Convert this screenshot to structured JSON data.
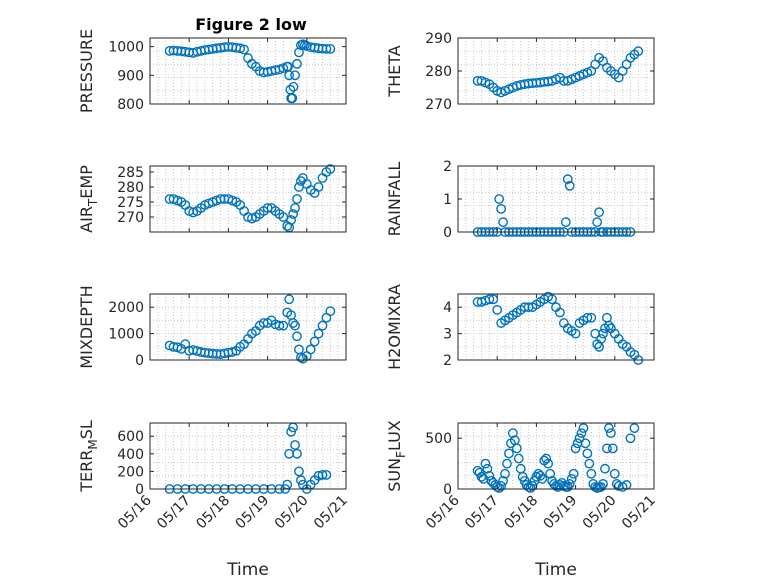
{
  "figure": {
    "title": "Figure 2 low"
  },
  "chart_data": [
    {
      "type": "scatter",
      "panel": "pressure",
      "title": "Figure 2 low",
      "ylabel": "PRESSURE",
      "xlabel": "",
      "xlim": [
        0,
        5
      ],
      "ylim": [
        800,
        1030
      ],
      "yticks": [
        800,
        900,
        1000
      ],
      "yticklabels": [
        "800",
        "900",
        "1000"
      ],
      "x": [
        0.5,
        0.6,
        0.7,
        0.8,
        0.9,
        1.0,
        1.1,
        1.2,
        1.3,
        1.4,
        1.5,
        1.6,
        1.7,
        1.8,
        1.9,
        2.0,
        2.1,
        2.2,
        2.3,
        2.4,
        2.5,
        2.6,
        2.7,
        2.8,
        2.9,
        3.0,
        3.1,
        3.2,
        3.3,
        3.4,
        3.5,
        3.52,
        3.55,
        3.58,
        3.6,
        3.63,
        3.66,
        3.7,
        3.75,
        3.8,
        3.85,
        3.9,
        3.95,
        4.0,
        4.1,
        4.2,
        4.3,
        4.4,
        4.5,
        4.6
      ],
      "y": [
        985,
        986,
        985,
        984,
        982,
        980,
        978,
        982,
        985,
        988,
        990,
        992,
        994,
        996,
        998,
        999,
        998,
        996,
        994,
        990,
        960,
        940,
        930,
        915,
        910,
        912,
        915,
        918,
        920,
        925,
        930,
        930,
        900,
        850,
        820,
        820,
        860,
        900,
        940,
        980,
        1005,
        1008,
        1005,
        1002,
        998,
        996,
        994,
        993,
        992,
        992
      ]
    },
    {
      "type": "scatter",
      "panel": "theta",
      "ylabel": "THETA",
      "xlim": [
        0,
        5
      ],
      "ylim": [
        270,
        290
      ],
      "yticks": [
        270,
        280,
        290
      ],
      "yticklabels": [
        "270",
        "280",
        "290"
      ],
      "x": [
        0.5,
        0.6,
        0.7,
        0.8,
        0.9,
        1.0,
        1.1,
        1.2,
        1.3,
        1.4,
        1.5,
        1.6,
        1.7,
        1.8,
        1.9,
        2.0,
        2.1,
        2.2,
        2.3,
        2.4,
        2.5,
        2.6,
        2.7,
        2.8,
        2.9,
        3.0,
        3.1,
        3.2,
        3.3,
        3.4,
        3.5,
        3.6,
        3.7,
        3.8,
        3.9,
        4.0,
        4.1,
        4.2,
        4.3,
        4.4,
        4.5,
        4.6
      ],
      "y": [
        277,
        277,
        276.5,
        276,
        275,
        274,
        273.5,
        274,
        274.5,
        275,
        275.5,
        275.8,
        276,
        276.2,
        276.3,
        276.4,
        276.5,
        276.7,
        276.8,
        277,
        277.5,
        278,
        277,
        277,
        277.5,
        278,
        278.5,
        279,
        279.5,
        280,
        282,
        284,
        283,
        281,
        280,
        279,
        278,
        280,
        282,
        284,
        285,
        286
      ]
    },
    {
      "type": "scatter",
      "panel": "air_temp",
      "ylabel": "AIR_TEMP",
      "xlim": [
        0,
        5
      ],
      "ylim": [
        265,
        287
      ],
      "yticks": [
        270,
        275,
        280,
        285
      ],
      "yticklabels": [
        "270",
        "275",
        "280",
        "285"
      ],
      "x": [
        0.5,
        0.6,
        0.7,
        0.8,
        0.9,
        1.0,
        1.1,
        1.2,
        1.3,
        1.4,
        1.5,
        1.6,
        1.7,
        1.8,
        1.9,
        2.0,
        2.1,
        2.2,
        2.3,
        2.4,
        2.5,
        2.6,
        2.7,
        2.8,
        2.9,
        3.0,
        3.1,
        3.2,
        3.3,
        3.4,
        3.5,
        3.55,
        3.6,
        3.65,
        3.7,
        3.75,
        3.8,
        3.85,
        3.9,
        4.0,
        4.1,
        4.2,
        4.3,
        4.4,
        4.5,
        4.6
      ],
      "y": [
        276,
        276,
        275.5,
        275,
        274,
        272,
        271.5,
        272,
        273,
        274,
        274.5,
        275,
        275.5,
        276,
        276,
        276,
        275.5,
        275,
        274,
        272,
        270,
        269.5,
        270,
        271,
        272,
        273,
        273,
        272,
        271,
        270,
        267,
        266.5,
        269,
        271,
        273,
        276,
        280,
        282,
        283,
        281,
        279,
        278,
        280,
        283,
        285,
        286
      ]
    },
    {
      "type": "scatter",
      "panel": "rainfall",
      "ylabel": "RAINFALL",
      "xlim": [
        0,
        5
      ],
      "ylim": [
        0,
        2
      ],
      "yticks": [
        0,
        1,
        2
      ],
      "yticklabels": [
        "0",
        "1",
        "2"
      ],
      "x": [
        0.5,
        0.6,
        0.7,
        0.8,
        0.9,
        1.0,
        1.05,
        1.1,
        1.15,
        1.2,
        1.3,
        1.4,
        1.5,
        1.6,
        1.7,
        1.8,
        1.9,
        2.0,
        2.1,
        2.2,
        2.3,
        2.4,
        2.5,
        2.6,
        2.7,
        2.75,
        2.8,
        2.85,
        2.9,
        3.0,
        3.1,
        3.2,
        3.3,
        3.4,
        3.5,
        3.55,
        3.6,
        3.65,
        3.7,
        3.8,
        3.9,
        4.0,
        4.1,
        4.2,
        4.3,
        4.4
      ],
      "y": [
        0,
        0,
        0,
        0,
        0,
        0,
        1.0,
        0.7,
        0.3,
        0,
        0,
        0,
        0,
        0,
        0,
        0,
        0,
        0,
        0,
        0,
        0,
        0,
        0,
        0,
        0,
        0.3,
        1.6,
        1.4,
        0,
        0,
        0,
        0,
        0,
        0,
        0,
        0.3,
        0.6,
        0,
        0,
        0,
        0,
        0,
        0,
        0,
        0,
        0
      ]
    },
    {
      "type": "scatter",
      "panel": "mixdepth",
      "ylabel": "MIXDEPTH",
      "xlim": [
        0,
        5
      ],
      "ylim": [
        0,
        2500
      ],
      "yticks": [
        0,
        1000,
        2000
      ],
      "yticklabels": [
        "0",
        "1000",
        "2000"
      ],
      "x": [
        0.5,
        0.6,
        0.7,
        0.8,
        0.9,
        1.0,
        1.1,
        1.2,
        1.3,
        1.4,
        1.5,
        1.6,
        1.7,
        1.8,
        1.9,
        2.0,
        2.1,
        2.2,
        2.3,
        2.4,
        2.5,
        2.6,
        2.7,
        2.8,
        2.9,
        3.0,
        3.1,
        3.2,
        3.3,
        3.4,
        3.5,
        3.55,
        3.6,
        3.65,
        3.7,
        3.75,
        3.8,
        3.85,
        3.9,
        4.0,
        4.1,
        4.2,
        4.3,
        4.4,
        4.5,
        4.6
      ],
      "y": [
        550,
        500,
        480,
        420,
        600,
        350,
        380,
        340,
        300,
        280,
        260,
        240,
        230,
        220,
        250,
        280,
        300,
        350,
        500,
        600,
        800,
        1000,
        1100,
        1300,
        1400,
        1400,
        1500,
        1350,
        1300,
        1300,
        1800,
        2300,
        1700,
        1400,
        1300,
        900,
        400,
        100,
        50,
        150,
        400,
        700,
        1000,
        1300,
        1600,
        1850
      ]
    },
    {
      "type": "scatter",
      "panel": "h2omixra",
      "ylabel": "H2OMIXRA",
      "xlim": [
        0,
        5
      ],
      "ylim": [
        2,
        4.5
      ],
      "yticks": [
        2,
        3,
        4
      ],
      "yticklabels": [
        "2",
        "3",
        "4"
      ],
      "x": [
        0.5,
        0.6,
        0.7,
        0.8,
        0.9,
        1.0,
        1.1,
        1.2,
        1.3,
        1.4,
        1.5,
        1.6,
        1.7,
        1.8,
        1.9,
        2.0,
        2.1,
        2.2,
        2.3,
        2.4,
        2.5,
        2.6,
        2.7,
        2.8,
        2.9,
        3.0,
        3.1,
        3.2,
        3.3,
        3.4,
        3.5,
        3.55,
        3.6,
        3.65,
        3.7,
        3.75,
        3.8,
        3.85,
        3.9,
        4.0,
        4.1,
        4.2,
        4.3,
        4.4,
        4.5,
        4.6
      ],
      "y": [
        4.2,
        4.2,
        4.25,
        4.3,
        4.3,
        3.9,
        3.4,
        3.5,
        3.6,
        3.7,
        3.8,
        3.9,
        4.0,
        4.0,
        4.0,
        4.1,
        4.2,
        4.3,
        4.4,
        4.3,
        4.0,
        3.8,
        3.4,
        3.2,
        3.1,
        3.0,
        3.4,
        3.5,
        3.6,
        3.6,
        3.0,
        2.6,
        2.5,
        2.8,
        3.0,
        3.2,
        3.6,
        3.3,
        3.2,
        3.0,
        2.8,
        2.6,
        2.5,
        2.3,
        2.2,
        2.0
      ]
    },
    {
      "type": "scatter",
      "panel": "terr_msl",
      "ylabel": "TERR_MSL",
      "xlabel": "Time",
      "xlim": [
        0,
        5
      ],
      "ylim": [
        0,
        750
      ],
      "yticks": [
        0,
        200,
        400,
        600
      ],
      "yticklabels": [
        "0",
        "200",
        "400",
        "600"
      ],
      "xticklabels": [
        "05/16",
        "05/17",
        "05/18",
        "05/19",
        "05/20",
        "05/21"
      ],
      "x": [
        0.5,
        0.7,
        0.9,
        1.1,
        1.3,
        1.5,
        1.7,
        1.9,
        2.1,
        2.3,
        2.5,
        2.7,
        2.9,
        3.1,
        3.3,
        3.45,
        3.5,
        3.55,
        3.6,
        3.65,
        3.7,
        3.75,
        3.8,
        3.85,
        3.9,
        4.0,
        4.1,
        4.2,
        4.3,
        4.4,
        4.5
      ],
      "y": [
        0,
        0,
        0,
        0,
        0,
        0,
        0,
        0,
        0,
        0,
        0,
        0,
        0,
        0,
        0,
        0,
        50,
        400,
        650,
        700,
        500,
        400,
        200,
        100,
        50,
        0,
        50,
        100,
        150,
        160,
        160
      ]
    },
    {
      "type": "scatter",
      "panel": "sun_flux",
      "ylabel": "SUN_FLUX",
      "xlabel": "Time",
      "xlim": [
        0,
        5
      ],
      "ylim": [
        0,
        650
      ],
      "yticks": [
        0,
        500
      ],
      "yticklabels": [
        "0",
        "500"
      ],
      "xticklabels": [
        "05/16",
        "05/17",
        "05/18",
        "05/19",
        "05/20",
        "05/21"
      ],
      "x": [
        0.5,
        0.55,
        0.6,
        0.65,
        0.7,
        0.75,
        0.8,
        0.85,
        0.9,
        0.95,
        1.0,
        1.05,
        1.1,
        1.15,
        1.2,
        1.25,
        1.3,
        1.35,
        1.4,
        1.45,
        1.5,
        1.55,
        1.6,
        1.65,
        1.7,
        1.75,
        1.8,
        1.85,
        1.9,
        1.95,
        2.0,
        2.05,
        2.1,
        2.15,
        2.2,
        2.25,
        2.3,
        2.35,
        2.4,
        2.45,
        2.5,
        2.55,
        2.6,
        2.65,
        2.7,
        2.75,
        2.8,
        2.85,
        2.9,
        2.95,
        3.0,
        3.05,
        3.1,
        3.15,
        3.2,
        3.25,
        3.3,
        3.35,
        3.4,
        3.45,
        3.5,
        3.55,
        3.6,
        3.65,
        3.7,
        3.75,
        3.8,
        3.85,
        3.9,
        3.95,
        4.0,
        4.05,
        4.1,
        4.2,
        4.3,
        4.4,
        4.5
      ],
      "y": [
        180,
        160,
        120,
        100,
        250,
        200,
        130,
        80,
        60,
        40,
        20,
        10,
        30,
        80,
        150,
        250,
        350,
        450,
        550,
        480,
        400,
        300,
        200,
        120,
        80,
        40,
        20,
        10,
        30,
        80,
        120,
        150,
        130,
        100,
        280,
        300,
        250,
        150,
        80,
        50,
        30,
        20,
        40,
        60,
        30,
        20,
        20,
        50,
        100,
        150,
        400,
        450,
        500,
        550,
        600,
        450,
        350,
        250,
        150,
        50,
        20,
        10,
        15,
        20,
        50,
        200,
        400,
        600,
        550,
        400,
        150,
        50,
        30,
        20,
        40,
        500,
        600
      ]
    }
  ]
}
